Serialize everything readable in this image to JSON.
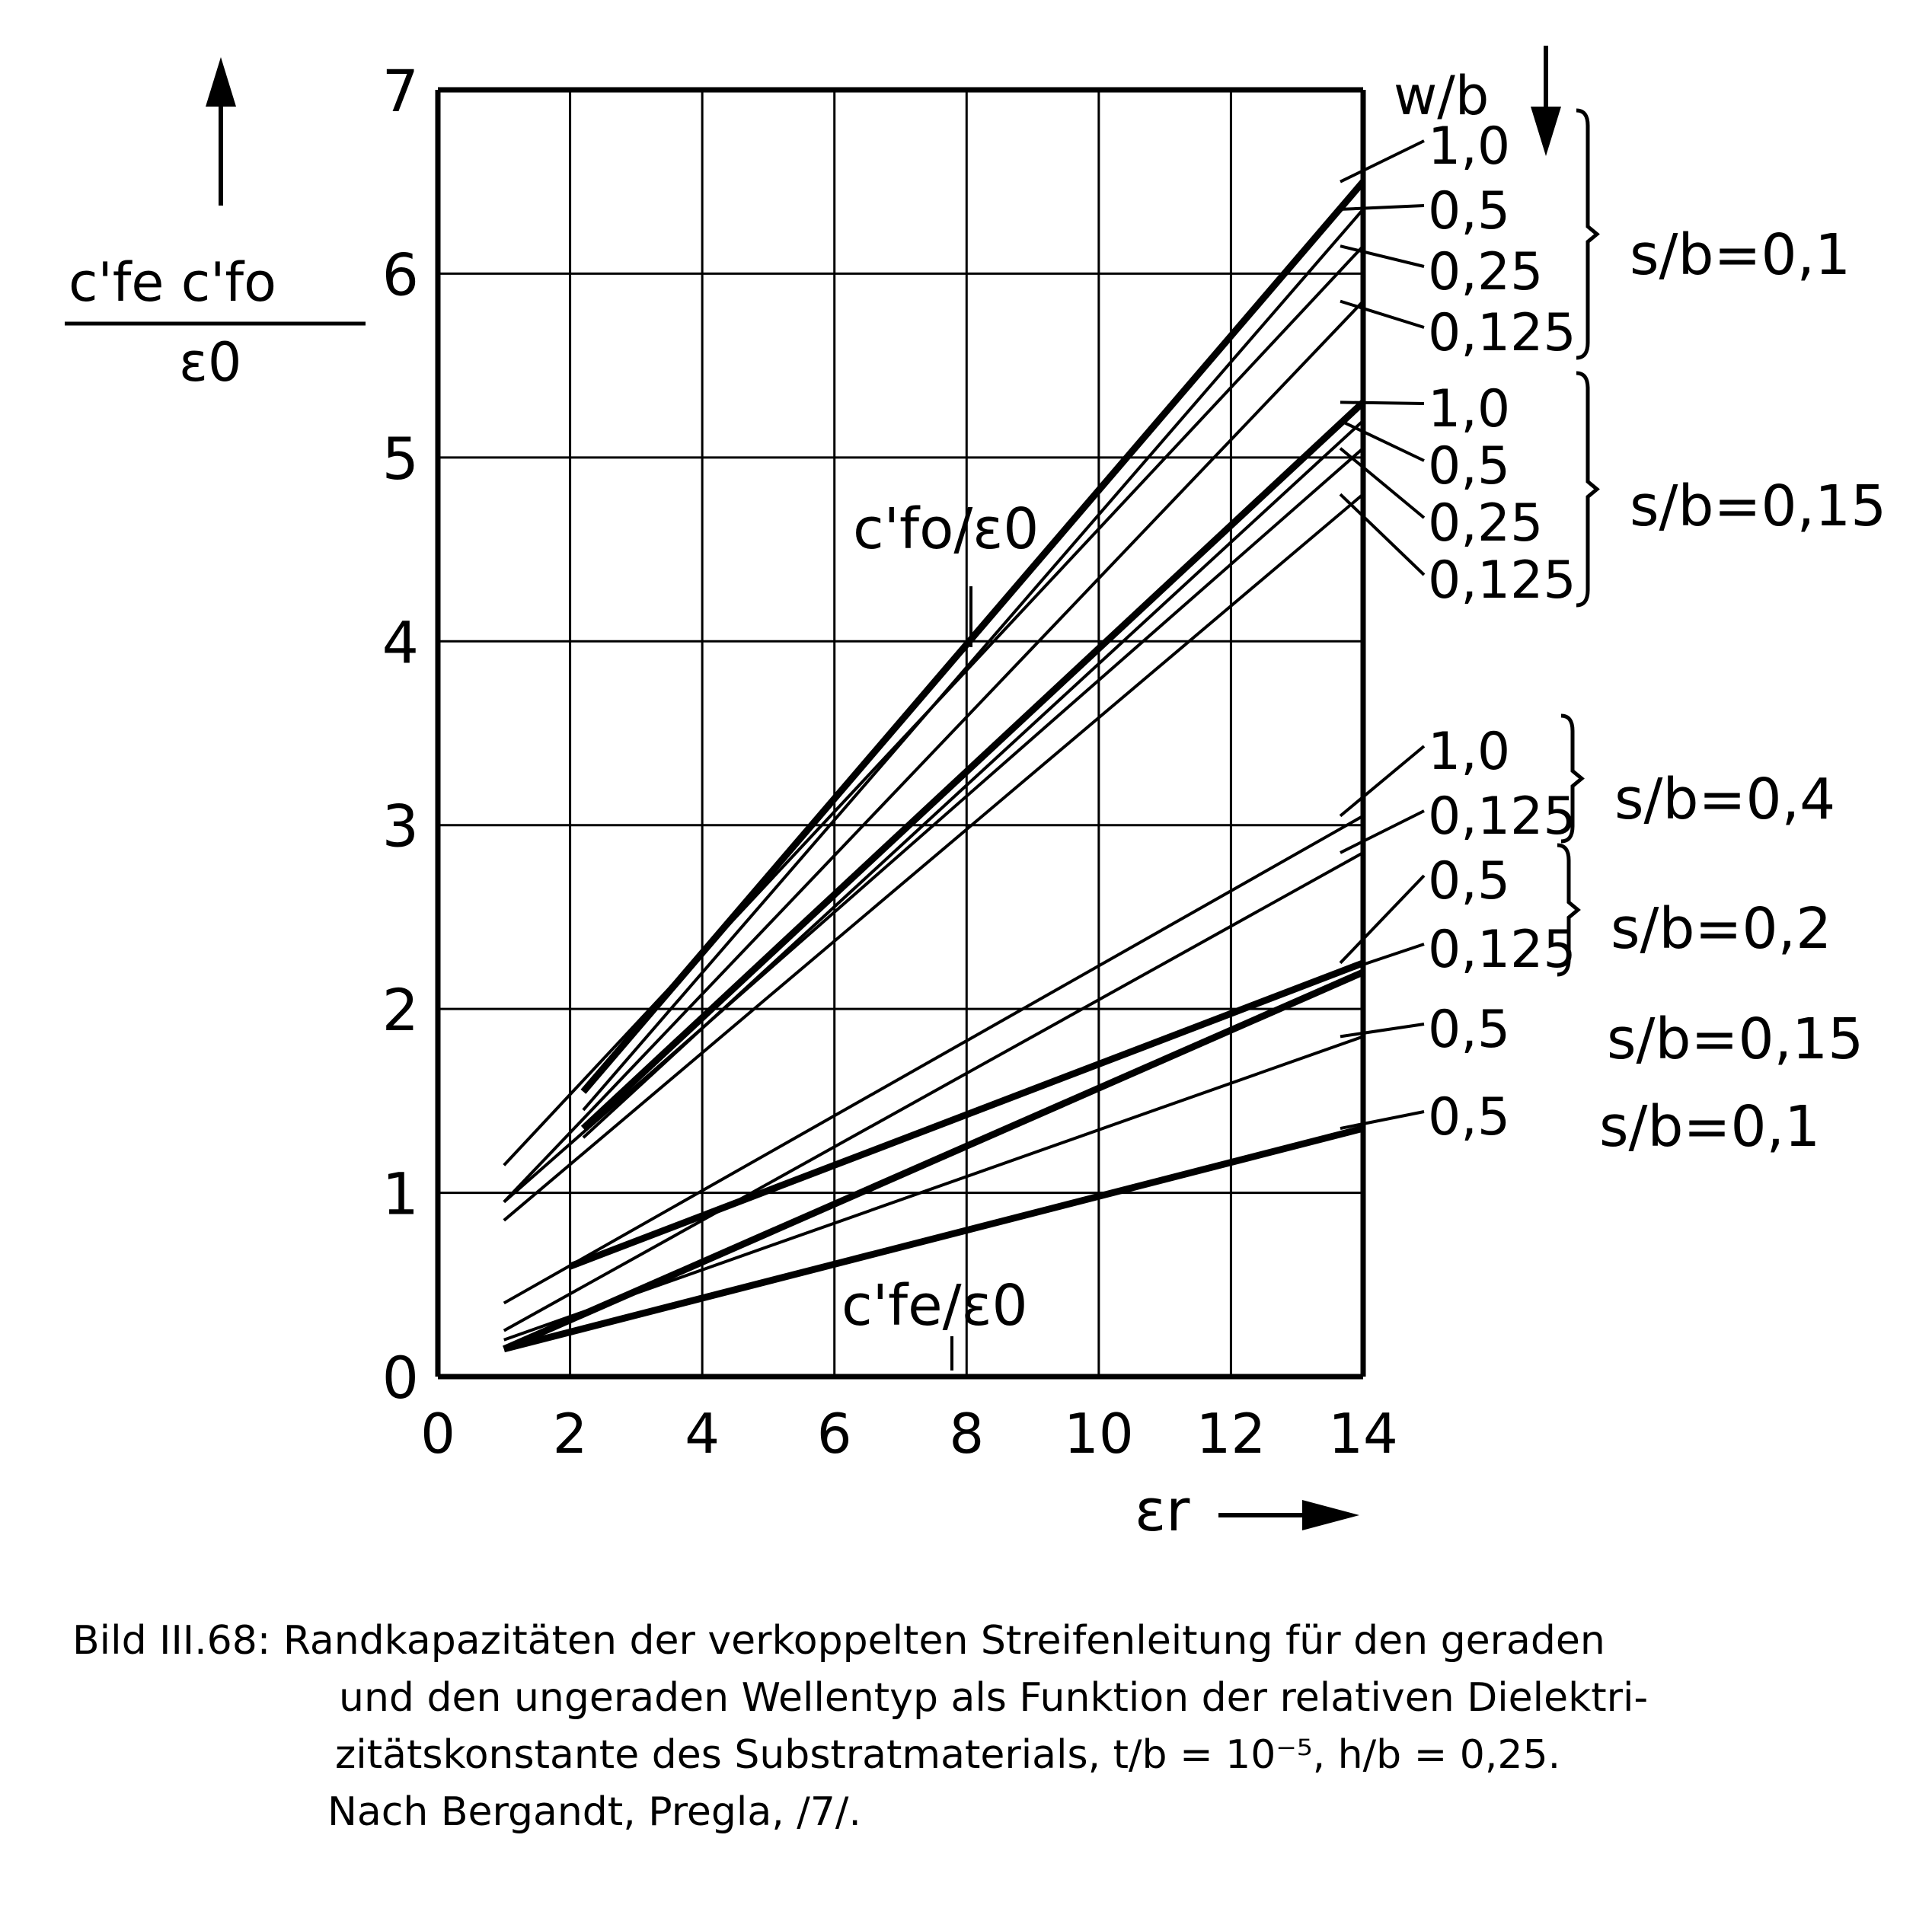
{
  "chart_data": {
    "type": "line",
    "xlabel": "εr",
    "ylabel": "c'fe c'fo / ε0",
    "xlim": [
      0,
      14
    ],
    "ylim": [
      0,
      7
    ],
    "x_ticks": [
      "0",
      "2",
      "4",
      "6",
      "8",
      "10",
      "12",
      "14"
    ],
    "y_ticks": [
      "0",
      "1",
      "2",
      "3",
      "4",
      "5",
      "6",
      "7"
    ],
    "grid": true,
    "legend_header": "w/b",
    "annotations": {
      "upper": "c'fo/ε0",
      "lower": "c'fe/ε0"
    },
    "groups": [
      {
        "label": "s/b=0,1",
        "series": [
          {
            "name": "1,0",
            "x": [
              2.2,
              14
            ],
            "y": [
              1.55,
              6.5
            ],
            "bold": true
          },
          {
            "name": "0,5",
            "x": [
              2.2,
              14
            ],
            "y": [
              1.45,
              6.35
            ],
            "bold": false
          },
          {
            "name": "0,25",
            "x": [
              1,
              14
            ],
            "y": [
              1.15,
              6.15
            ],
            "bold": false
          },
          {
            "name": "0,125",
            "x": [
              1,
              14
            ],
            "y": [
              0.95,
              5.85
            ],
            "bold": false
          }
        ]
      },
      {
        "label": "s/b=0,15",
        "series": [
          {
            "name": "1,0",
            "x": [
              2.2,
              14
            ],
            "y": [
              1.35,
              5.3
            ],
            "bold": true
          },
          {
            "name": "0,5",
            "x": [
              2.2,
              14
            ],
            "y": [
              1.3,
              5.2
            ],
            "bold": false
          },
          {
            "name": "0,25",
            "x": [
              1,
              14
            ],
            "y": [
              0.95,
              5.05
            ],
            "bold": false
          },
          {
            "name": "0,125",
            "x": [
              1,
              14
            ],
            "y": [
              0.85,
              4.8
            ],
            "bold": false
          }
        ]
      },
      {
        "label": "s/b=0,4",
        "series": [
          {
            "name": "1,0",
            "x": [
              1,
              14
            ],
            "y": [
              0.4,
              3.05
            ],
            "bold": false
          },
          {
            "name": "0,125",
            "x": [
              1,
              14
            ],
            "y": [
              0.25,
              2.85
            ],
            "bold": false
          }
        ]
      },
      {
        "label": "s/b=0,2",
        "series": [
          {
            "name": "0,5",
            "x": [
              2,
              14
            ],
            "y": [
              0.6,
              2.25
            ],
            "bold": true
          },
          {
            "name": "0,125",
            "x": [
              1,
              14
            ],
            "y": [
              0.15,
              2.2
            ],
            "bold": true
          }
        ]
      },
      {
        "label": "s/b=0,15",
        "series": [
          {
            "name": "0,5",
            "x": [
              1,
              14
            ],
            "y": [
              0.2,
              1.85
            ],
            "bold": false
          }
        ]
      },
      {
        "label": "s/b=0,1",
        "series": [
          {
            "name": "0,5",
            "x": [
              1,
              14
            ],
            "y": [
              0.15,
              1.35
            ],
            "bold": true
          }
        ]
      }
    ]
  },
  "caption": {
    "line1": "Bild III.68: Randkapazitäten der verkoppelten Streifenleitung für den geraden",
    "line2": "und den ungeraden Wellentyp als Funktion der relativen Dielektri-",
    "line3": "zitätskonstante des Substratmaterials,  t/b = 10⁻⁵,  h/b = 0,25.",
    "line4": "Nach Bergandt, Pregla, /7/."
  }
}
